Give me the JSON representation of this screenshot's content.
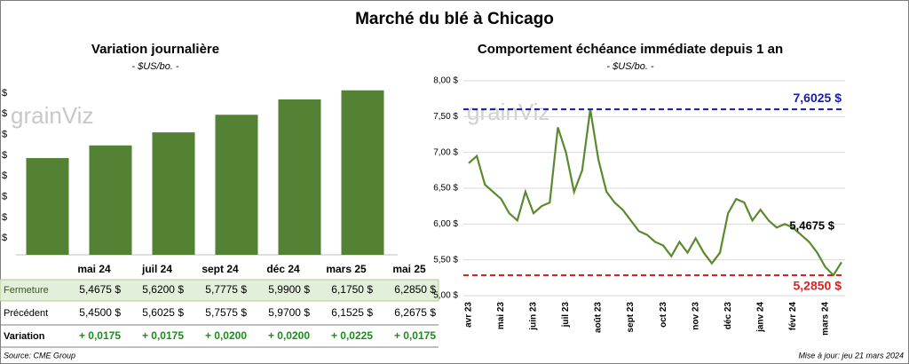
{
  "title": "Marché du blé à Chicago",
  "chart_data": [
    {
      "type": "bar",
      "title": "Variation journalière",
      "subtitle": "- $US/bo. -",
      "watermark": "grainViz",
      "categories": [
        "mai 24",
        "juil 24",
        "sept 24",
        "déc 24",
        "mars 25",
        "mai 25"
      ],
      "values": [
        5.4675,
        5.62,
        5.7775,
        5.99,
        6.175,
        6.285
      ],
      "color": "#548235",
      "ylim": [
        4.3,
        6.4
      ],
      "yticks": [
        {
          "value": 4.5,
          "label": "$"
        },
        {
          "value": 4.75,
          "label": "$"
        },
        {
          "value": 5.0,
          "label": "$"
        },
        {
          "value": 5.25,
          "label": "$"
        },
        {
          "value": 5.5,
          "label": "$"
        },
        {
          "value": 5.75,
          "label": "$"
        },
        {
          "value": 6.0,
          "label": "$"
        },
        {
          "value": 6.25,
          "label": "$"
        }
      ]
    },
    {
      "type": "line",
      "title": "Comportement échéance immédiate depuis 1 an",
      "subtitle": "- $US/bo. -",
      "watermark": "grainViz",
      "categories": [
        "avr 23",
        null,
        null,
        null,
        "mai 23",
        null,
        null,
        null,
        "juin 23",
        null,
        null,
        null,
        "juil 23",
        null,
        null,
        null,
        "août 23",
        null,
        null,
        null,
        "sept 23",
        null,
        null,
        null,
        "oct 23",
        null,
        null,
        null,
        "nov 23",
        null,
        null,
        null,
        "déc 23",
        null,
        null,
        null,
        "janv 24",
        null,
        null,
        null,
        "févr 24",
        null,
        null,
        null,
        "mars 24",
        null,
        null
      ],
      "series": [
        {
          "name": "Échéance immédiate",
          "color": "#5b8a2e",
          "values": [
            6.85,
            6.95,
            6.55,
            6.45,
            6.35,
            6.15,
            6.05,
            6.45,
            6.15,
            6.25,
            6.3,
            7.35,
            7.0,
            6.45,
            6.75,
            7.6025,
            6.9,
            6.45,
            6.3,
            6.2,
            6.05,
            5.9,
            5.85,
            5.75,
            5.7,
            5.55,
            5.75,
            5.6,
            5.8,
            5.6,
            5.45,
            5.6,
            6.15,
            6.35,
            6.3,
            6.05,
            6.2,
            6.05,
            5.95,
            6.0,
            5.95,
            5.85,
            5.75,
            5.6,
            5.4,
            5.285,
            5.4675
          ]
        }
      ],
      "ylim": [
        5.0,
        8.0
      ],
      "yticks": [
        {
          "value": 5.0,
          "label": "5,00 $"
        },
        {
          "value": 5.5,
          "label": "5,50 $"
        },
        {
          "value": 6.0,
          "label": "6,00 $"
        },
        {
          "value": 6.5,
          "label": "6,50 $"
        },
        {
          "value": 7.0,
          "label": "7,00 $"
        },
        {
          "value": 7.5,
          "label": "7,50 $"
        },
        {
          "value": 8.0,
          "label": "8,00 $"
        }
      ],
      "grid": true,
      "reference_lines": [
        {
          "value": 7.6025,
          "label": "7,6025 $",
          "color": "#1a1aa6"
        },
        {
          "value": 5.285,
          "label": "5,2850 $",
          "color": "#e02020"
        }
      ],
      "last_label": "5,4675 $"
    }
  ],
  "table": {
    "rows": [
      {
        "label": "Fermeture",
        "cells": [
          "5,4675 $",
          "5,6200 $",
          "5,7775 $",
          "5,9900 $",
          "6,1750 $",
          "6,2850 $"
        ]
      },
      {
        "label": "Précédent",
        "cells": [
          "5,4500 $",
          "5,6025 $",
          "5,7575 $",
          "5,9700 $",
          "6,1525 $",
          "6,2675 $"
        ]
      },
      {
        "label": "Variation",
        "cells": [
          "+ 0,0175",
          "+ 0,0175",
          "+ 0,0200",
          "+ 0,0200",
          "+ 0,0225",
          "+ 0,0175"
        ]
      }
    ]
  },
  "footer": {
    "source": "Source: CME Group",
    "updated": "Mise à jour: jeu 21 mars 2024"
  }
}
